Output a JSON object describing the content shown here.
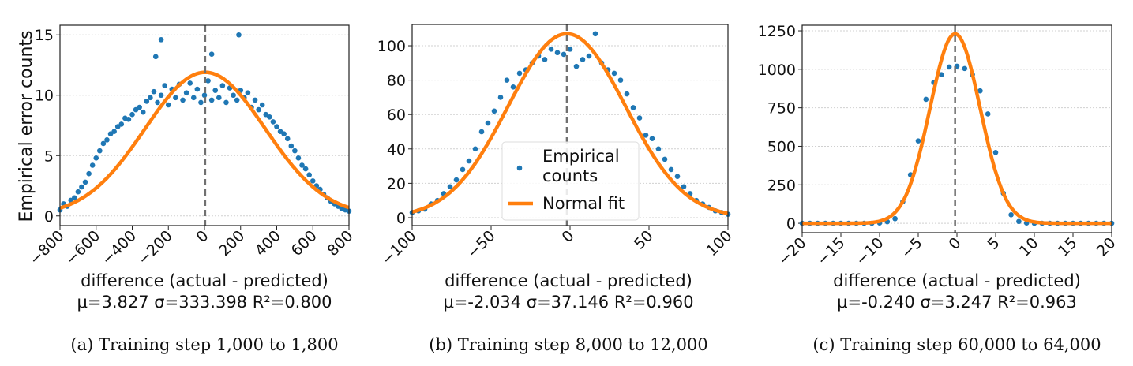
{
  "colors": {
    "points": "#1f77b4",
    "fit": "#ff7f0e",
    "mean_line": "#707070",
    "grid": "#d0d0d0"
  },
  "chart_data": [
    {
      "type": "scatter",
      "caption": "(a) Training step 1,000 to 1,800",
      "xlabel": "difference (actual - predicted)",
      "ylabel": "Empirical error counts",
      "stats": "μ=3.827    σ=333.398    R²=0.800",
      "fit": {
        "mu": 3.827,
        "sigma": 333.398,
        "amplitude": 11.9
      },
      "xlim": [
        -800,
        800
      ],
      "ylim": [
        -0.8,
        15.8
      ],
      "xticks": [
        -800,
        -600,
        -400,
        -200,
        0,
        200,
        400,
        600,
        800
      ],
      "xtick_labels": [
        "−800",
        "−600",
        "−400",
        "−200",
        "0",
        "200",
        "400",
        "600",
        "800"
      ],
      "yticks": [
        0,
        5,
        10,
        15
      ],
      "ytick_labels": [
        "0",
        "5",
        "10",
        "15"
      ],
      "grid": "horizontal dotted",
      "x": [
        -800,
        -780,
        -760,
        -740,
        -720,
        -700,
        -680,
        -660,
        -640,
        -620,
        -600,
        -580,
        -560,
        -540,
        -520,
        -500,
        -480,
        -460,
        -440,
        -420,
        -400,
        -380,
        -360,
        -340,
        -320,
        -300,
        -280,
        -260,
        -240,
        -220,
        -200,
        -180,
        -160,
        -140,
        -120,
        -100,
        -80,
        -60,
        -40,
        -20,
        0,
        20,
        40,
        60,
        80,
        100,
        120,
        140,
        160,
        180,
        200,
        220,
        240,
        260,
        280,
        300,
        320,
        340,
        360,
        380,
        400,
        420,
        440,
        460,
        480,
        500,
        520,
        540,
        560,
        580,
        600,
        620,
        640,
        660,
        680,
        700,
        720,
        740,
        760,
        780,
        800,
        -240,
        190,
        -270,
        40
      ],
      "y": [
        0.5,
        1.0,
        0.8,
        1.3,
        1.5,
        2.0,
        2.4,
        2.8,
        3.5,
        4.2,
        4.8,
        5.4,
        6.0,
        6.3,
        6.8,
        7.0,
        7.4,
        7.6,
        8.1,
        8.0,
        8.4,
        8.8,
        9.0,
        8.6,
        9.5,
        9.8,
        10.3,
        9.4,
        10.0,
        10.8,
        9.2,
        10.5,
        9.8,
        10.9,
        9.6,
        10.2,
        11.0,
        9.8,
        10.5,
        9.4,
        10.0,
        11.2,
        9.6,
        10.4,
        9.8,
        10.8,
        9.4,
        10.6,
        10.0,
        9.6,
        10.4,
        9.8,
        10.2,
        9.0,
        9.6,
        8.8,
        9.2,
        8.4,
        8.2,
        7.8,
        7.4,
        7.0,
        6.8,
        6.4,
        5.8,
        5.4,
        4.8,
        4.2,
        3.9,
        3.4,
        2.9,
        2.5,
        2.2,
        1.8,
        1.5,
        1.2,
        1.0,
        0.8,
        0.6,
        0.5,
        0.4,
        14.6,
        15.0,
        13.2,
        13.4
      ]
    },
    {
      "type": "scatter",
      "caption": "(b) Training step 8,000 to 12,000",
      "xlabel": "difference (actual - predicted)",
      "stats": "μ=-2.034    σ=37.146    R²=0.960",
      "fit": {
        "mu": -2.034,
        "sigma": 37.146,
        "amplitude": 107
      },
      "xlim": [
        -100,
        100
      ],
      "ylim": [
        -4.6,
        112.4
      ],
      "xticks": [
        -100,
        -50,
        0,
        50,
        100
      ],
      "xtick_labels": [
        "−100",
        "−50",
        "0",
        "50",
        "100"
      ],
      "yticks": [
        0,
        20,
        40,
        60,
        80,
        100
      ],
      "ytick_labels": [
        "0",
        "20",
        "40",
        "60",
        "80",
        "100"
      ],
      "grid": "horizontal dotted",
      "legend": {
        "placement": "lower center",
        "entries": [
          "Empirical counts",
          "Normal fit"
        ],
        "entry_lines": [
          "Empirical",
          "counts",
          "Normal fit"
        ]
      },
      "x": [
        -100,
        -96,
        -92,
        -88,
        -84,
        -80,
        -76,
        -72,
        -68,
        -64,
        -60,
        -56,
        -52,
        -48,
        -44,
        -40,
        -36,
        -32,
        -28,
        -24,
        -20,
        -16,
        -12,
        -8,
        -4,
        0,
        4,
        8,
        12,
        16,
        20,
        24,
        28,
        32,
        36,
        40,
        44,
        48,
        52,
        56,
        60,
        64,
        68,
        72,
        76,
        80,
        84,
        88,
        92,
        96,
        100
      ],
      "y": [
        3,
        4,
        5,
        8,
        10,
        14,
        18,
        22,
        28,
        33,
        40,
        50,
        55,
        62,
        70,
        80,
        76,
        84,
        86,
        90,
        94,
        92,
        98,
        96,
        95,
        98,
        88,
        92,
        94,
        107,
        90,
        86,
        84,
        80,
        72,
        64,
        58,
        48,
        46,
        40,
        34,
        28,
        24,
        18,
        14,
        10,
        8,
        6,
        4,
        3,
        2
      ]
    },
    {
      "type": "scatter",
      "caption": "(c) Training step 60,000 to 64,000",
      "xlabel": "difference (actual - predicted)",
      "stats": "μ=-0.240    σ=3.247    R²=0.963",
      "fit": {
        "mu": -0.24,
        "sigma": 3.247,
        "amplitude": 1230
      },
      "xlim": [
        -20,
        20
      ],
      "ylim": [
        -61,
        1286
      ],
      "xticks": [
        -20,
        -15,
        -10,
        -5,
        0,
        5,
        10,
        15,
        20
      ],
      "xtick_labels": [
        "−20",
        "−15",
        "−10",
        "−5",
        "0",
        "5",
        "10",
        "15",
        "20"
      ],
      "yticks": [
        0,
        250,
        500,
        750,
        1000,
        1250
      ],
      "ytick_labels": [
        "0",
        "250",
        "500",
        "750",
        "1000",
        "1250"
      ],
      "grid": "horizontal dotted",
      "x": [
        -20,
        -19,
        -18,
        -17,
        -16,
        -15,
        -14,
        -13,
        -12,
        -11,
        -10,
        -9,
        -8,
        -7,
        -6,
        -5,
        -4,
        -3,
        -2,
        -1,
        0,
        1,
        2,
        3,
        4,
        5,
        6,
        7,
        8,
        9,
        10,
        11,
        12,
        13,
        14,
        15,
        16,
        17,
        18,
        19,
        20
      ],
      "y": [
        0,
        0,
        0,
        0,
        0,
        0,
        0,
        0,
        0,
        0,
        2,
        10,
        30,
        140,
        315,
        535,
        805,
        915,
        965,
        1015,
        1020,
        1005,
        965,
        860,
        710,
        460,
        195,
        55,
        12,
        2,
        0,
        0,
        0,
        0,
        0,
        0,
        0,
        0,
        0,
        0,
        0
      ]
    }
  ]
}
